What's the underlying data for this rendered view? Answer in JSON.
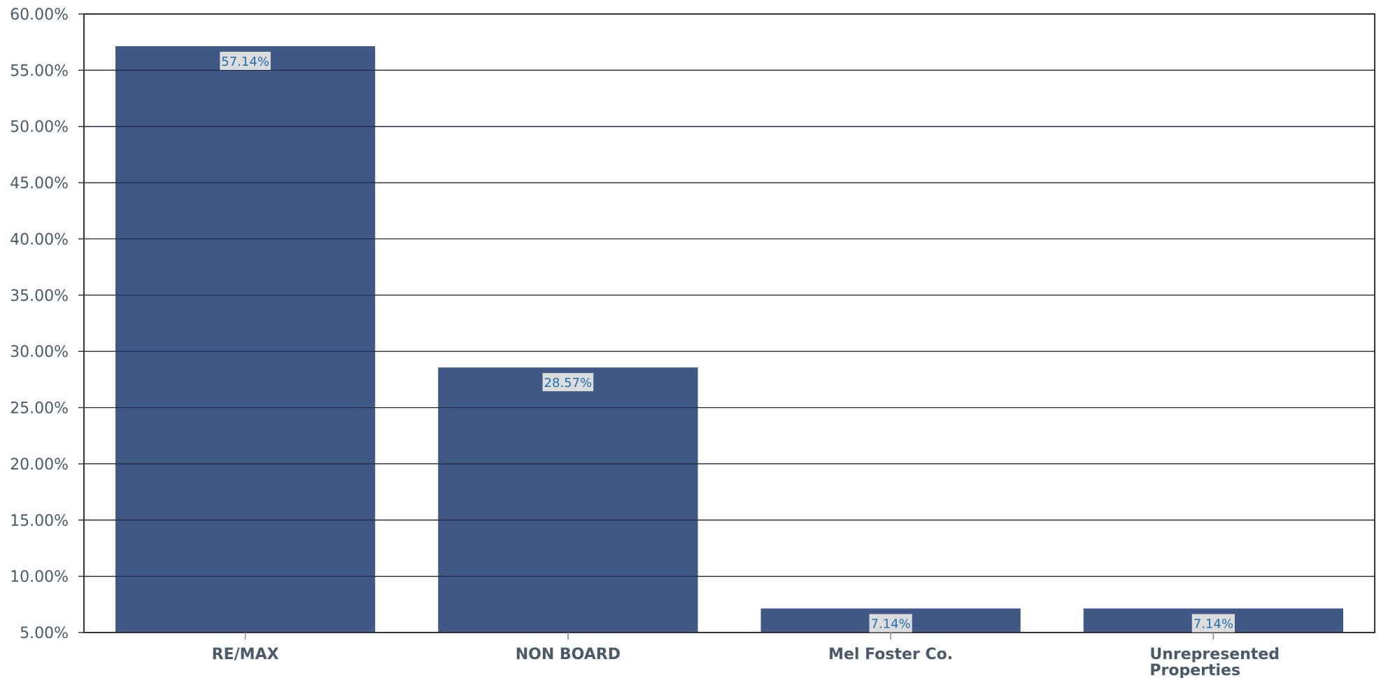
{
  "chart_data": {
    "type": "bar",
    "categories": [
      "RE/MAX",
      "NON BOARD",
      "Mel Foster Co.",
      "Unrepresented Properties"
    ],
    "category_lines": [
      [
        "RE/MAX"
      ],
      [
        "NON BOARD"
      ],
      [
        "Mel Foster Co."
      ],
      [
        "Unrepresented",
        "Properties"
      ]
    ],
    "values": [
      57.14,
      28.57,
      7.14,
      7.14
    ],
    "data_labels": [
      "57.14%",
      "28.57%",
      "7.14%",
      "7.14%"
    ],
    "ylim": [
      5,
      60
    ],
    "yticks": [
      5,
      10,
      15,
      20,
      25,
      30,
      35,
      40,
      45,
      50,
      55,
      60
    ],
    "ytick_labels": [
      "5.00%",
      "10.00%",
      "15.00%",
      "20.00%",
      "25.00%",
      "30.00%",
      "35.00%",
      "40.00%",
      "45.00%",
      "50.00%",
      "55.00%",
      "60.00%"
    ],
    "grid": true,
    "legend": "none",
    "title": "",
    "xlabel": "",
    "ylabel": "",
    "colors": {
      "bar": "#405886",
      "gridline": "#1c2233",
      "axis": "#333333",
      "tick_text": "#4a5a6a",
      "data_label_text": "#1f6fb2",
      "data_label_bg": "#dcdcdc"
    }
  }
}
